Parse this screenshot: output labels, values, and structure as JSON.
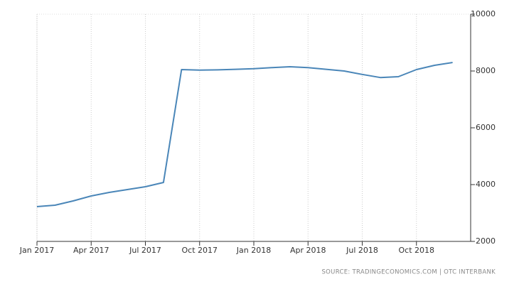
{
  "chart_data": {
    "type": "line",
    "source": "SOURCE: TRADINGECONOMICS.COM | OTC INTERBANK",
    "x": [
      "2017-01",
      "2017-02",
      "2017-03",
      "2017-04",
      "2017-05",
      "2017-06",
      "2017-07",
      "2017-08",
      "2017-09",
      "2017-10",
      "2017-11",
      "2017-12",
      "2018-01",
      "2018-02",
      "2018-03",
      "2018-04",
      "2018-05",
      "2018-06",
      "2018-07",
      "2018-08",
      "2018-09",
      "2018-10",
      "2018-11",
      "2018-12"
    ],
    "series": [
      {
        "color": "#4a86b8",
        "values": [
          3225,
          3275,
          3425,
          3600,
          3725,
          3825,
          3925,
          4075,
          8050,
          8030,
          8040,
          8060,
          8080,
          8120,
          8150,
          8120,
          8060,
          8000,
          7880,
          7770,
          7800,
          8050,
          8200,
          8300
        ]
      }
    ],
    "xlim": [
      "2017-01",
      "2018-12"
    ],
    "xticks": [
      {
        "value": "2017-01",
        "label": "Jan 2017"
      },
      {
        "value": "2017-04",
        "label": "Apr 2017"
      },
      {
        "value": "2017-07",
        "label": "Jul 2017"
      },
      {
        "value": "2017-10",
        "label": "Oct 2017"
      },
      {
        "value": "2018-01",
        "label": "Jan 2018"
      },
      {
        "value": "2018-04",
        "label": "Apr 2018"
      },
      {
        "value": "2018-07",
        "label": "Jul 2018"
      },
      {
        "value": "2018-10",
        "label": "Oct 2018"
      }
    ],
    "ylim": [
      2000,
      10000
    ],
    "yticks": [
      2000,
      4000,
      6000,
      8000,
      10000
    ],
    "grid": true
  }
}
